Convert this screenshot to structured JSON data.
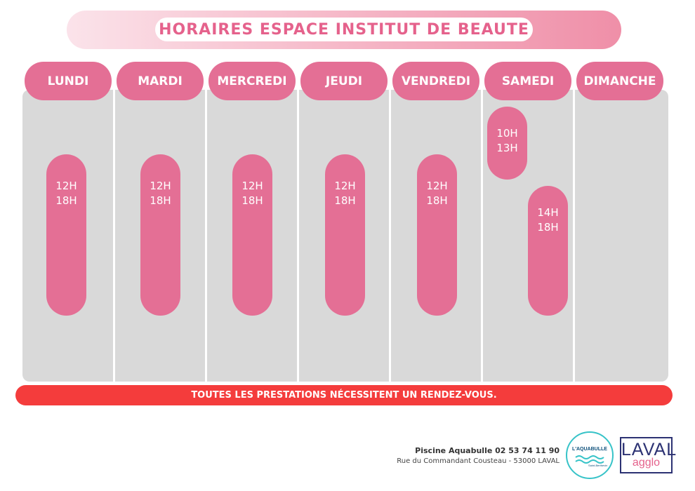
{
  "title": "HORAIRES ESPACE INSTITUT DE BEAUTE",
  "days": [
    {
      "name": "LUNDI",
      "slots": [
        {
          "start": "12H",
          "end": "18H"
        }
      ]
    },
    {
      "name": "MARDI",
      "slots": [
        {
          "start": "12H",
          "end": "18H"
        }
      ]
    },
    {
      "name": "MERCREDI",
      "slots": [
        {
          "start": "12H",
          "end": "18H"
        }
      ]
    },
    {
      "name": "JEUDI",
      "slots": [
        {
          "start": "12H",
          "end": "18H"
        }
      ]
    },
    {
      "name": "VENDREDI",
      "slots": [
        {
          "start": "12H",
          "end": "18H"
        }
      ]
    },
    {
      "name": "SAMEDI",
      "slots": [
        {
          "start": "10H",
          "end": "13H"
        },
        {
          "start": "14H",
          "end": "18H"
        }
      ]
    },
    {
      "name": "DIMANCHE",
      "slots": []
    }
  ],
  "notice": "TOUTES LES PRESTATIONS NÉCESSITENT UN RENDEZ-VOUS.",
  "contact": {
    "name_phone": "Piscine Aquabulle 02 53 74 11 90",
    "address": "Rue du Commandant Cousteau - 53000 LAVAL"
  },
  "logos": {
    "aquabulle": "L'AQUABULLE",
    "aquabulle_sub": "Saint-Berthevin",
    "laval_top": "LAVAL",
    "laval_bottom": "agglo"
  },
  "colors": {
    "accent_pink": "#e46f95",
    "title_text": "#e5628c",
    "column_bg": "#d9d9d9",
    "notice_red": "#f43c3c"
  }
}
